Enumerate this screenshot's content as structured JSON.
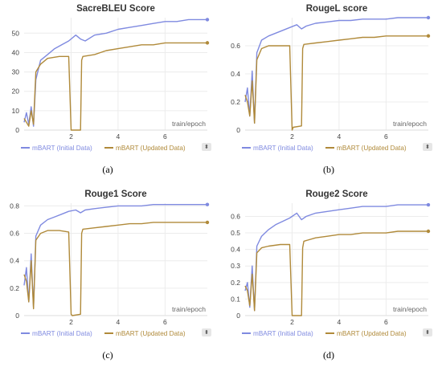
{
  "legend_controls": {
    "sort_icon": "sort-arrows-icon",
    "sort_glyph": "⬍"
  },
  "colors": {
    "initial": "#7f8ae0",
    "updated": "#b08a3a",
    "grid": "#ececec",
    "axis": "#dddddd"
  },
  "chart_data": [
    {
      "type": "line",
      "title": "SacreBLEU Score",
      "caption": "(a)",
      "xlabel": "train/epoch",
      "ylabel": "",
      "xlim": [
        0,
        7.8
      ],
      "ylim": [
        0,
        58
      ],
      "xticks": [
        "2",
        "4",
        "6"
      ],
      "yticks": [
        "0",
        "10",
        "20",
        "30",
        "40",
        "50"
      ],
      "series": [
        {
          "name": "mBART (Initial Data)",
          "color": "#7f8ae0",
          "x": [
            0.0,
            0.1,
            0.2,
            0.3,
            0.4,
            0.5,
            0.7,
            1.0,
            1.3,
            1.6,
            1.9,
            2.2,
            2.4,
            2.6,
            3.0,
            3.5,
            4.0,
            4.5,
            5.0,
            5.5,
            6.0,
            6.5,
            7.0,
            7.5,
            7.8
          ],
          "y": [
            4,
            9,
            3,
            12,
            2,
            26,
            36,
            39,
            42,
            44,
            46,
            49,
            47,
            46,
            49,
            50,
            52,
            53,
            54,
            55,
            56,
            56,
            57,
            57,
            57
          ]
        },
        {
          "name": "mBART (Updated Data)",
          "color": "#b08a3a",
          "x": [
            0.0,
            0.1,
            0.2,
            0.3,
            0.4,
            0.5,
            0.7,
            1.0,
            1.5,
            1.9,
            2.0,
            2.05,
            2.4,
            2.45,
            2.5,
            3.0,
            3.5,
            4.0,
            4.5,
            5.0,
            5.5,
            6.0,
            6.5,
            7.0,
            7.5,
            7.8
          ],
          "y": [
            6,
            4,
            2,
            10,
            3,
            30,
            34,
            37,
            38,
            38,
            0,
            0,
            0,
            36,
            38,
            39,
            41,
            42,
            43,
            44,
            44,
            45,
            45,
            45,
            45,
            45
          ]
        }
      ]
    },
    {
      "type": "line",
      "title": "RougeL score",
      "caption": "(b)",
      "xlabel": "train/epoch",
      "ylabel": "",
      "xlim": [
        0,
        7.8
      ],
      "ylim": [
        0,
        0.8
      ],
      "xticks": [
        "2",
        "4",
        "6"
      ],
      "yticks": [
        "0",
        "0.2",
        "0.4",
        "0.6"
      ],
      "series": [
        {
          "name": "mBART (Initial Data)",
          "color": "#7f8ae0",
          "x": [
            0.0,
            0.1,
            0.2,
            0.3,
            0.4,
            0.5,
            0.7,
            1.0,
            1.3,
            1.6,
            1.9,
            2.2,
            2.4,
            2.6,
            3.0,
            3.5,
            4.0,
            4.5,
            5.0,
            5.5,
            6.0,
            6.5,
            7.0,
            7.5,
            7.8
          ],
          "y": [
            0.2,
            0.3,
            0.1,
            0.42,
            0.05,
            0.55,
            0.64,
            0.67,
            0.69,
            0.71,
            0.73,
            0.75,
            0.72,
            0.74,
            0.76,
            0.77,
            0.78,
            0.78,
            0.79,
            0.79,
            0.79,
            0.8,
            0.8,
            0.8,
            0.8
          ]
        },
        {
          "name": "mBART (Updated Data)",
          "color": "#b08a3a",
          "x": [
            0.0,
            0.1,
            0.2,
            0.3,
            0.4,
            0.5,
            0.7,
            1.0,
            1.5,
            1.9,
            2.0,
            2.05,
            2.4,
            2.45,
            2.5,
            3.0,
            3.5,
            4.0,
            4.5,
            5.0,
            5.5,
            6.0,
            6.5,
            7.0,
            7.5,
            7.8
          ],
          "y": [
            0.25,
            0.2,
            0.1,
            0.35,
            0.05,
            0.5,
            0.58,
            0.6,
            0.6,
            0.6,
            0.0,
            0.02,
            0.03,
            0.58,
            0.61,
            0.62,
            0.63,
            0.64,
            0.65,
            0.66,
            0.66,
            0.67,
            0.67,
            0.67,
            0.67,
            0.67
          ]
        }
      ]
    },
    {
      "type": "line",
      "title": "Rouge1 Score",
      "caption": "(c)",
      "xlabel": "train/epoch",
      "ylabel": "",
      "xlim": [
        0,
        7.8
      ],
      "ylim": [
        0,
        0.82
      ],
      "xticks": [
        "2",
        "4",
        "6"
      ],
      "yticks": [
        "0",
        "0.2",
        "0.4",
        "0.6",
        "0.8"
      ],
      "series": [
        {
          "name": "mBART (Initial Data)",
          "color": "#7f8ae0",
          "x": [
            0.0,
            0.1,
            0.2,
            0.3,
            0.4,
            0.5,
            0.7,
            1.0,
            1.3,
            1.6,
            1.9,
            2.2,
            2.4,
            2.6,
            3.0,
            3.5,
            4.0,
            4.5,
            5.0,
            5.5,
            6.0,
            6.5,
            7.0,
            7.5,
            7.8
          ],
          "y": [
            0.22,
            0.35,
            0.1,
            0.45,
            0.06,
            0.58,
            0.66,
            0.7,
            0.72,
            0.74,
            0.76,
            0.77,
            0.75,
            0.77,
            0.78,
            0.79,
            0.8,
            0.8,
            0.8,
            0.81,
            0.81,
            0.81,
            0.81,
            0.81,
            0.81
          ]
        },
        {
          "name": "mBART (Updated Data)",
          "color": "#b08a3a",
          "x": [
            0.0,
            0.1,
            0.2,
            0.3,
            0.4,
            0.5,
            0.7,
            1.0,
            1.5,
            1.9,
            2.0,
            2.05,
            2.4,
            2.45,
            2.5,
            3.0,
            3.5,
            4.0,
            4.5,
            5.0,
            5.5,
            6.0,
            6.5,
            7.0,
            7.5,
            7.8
          ],
          "y": [
            0.3,
            0.25,
            0.1,
            0.4,
            0.05,
            0.55,
            0.6,
            0.62,
            0.62,
            0.61,
            0.01,
            0.0,
            0.01,
            0.6,
            0.63,
            0.64,
            0.65,
            0.66,
            0.67,
            0.67,
            0.68,
            0.68,
            0.68,
            0.68,
            0.68,
            0.68
          ]
        }
      ]
    },
    {
      "type": "line",
      "title": "Rouge2 Score",
      "caption": "(d)",
      "xlabel": "train/epoch",
      "ylabel": "",
      "xlim": [
        0,
        7.8
      ],
      "ylim": [
        0,
        0.68
      ],
      "xticks": [
        "2",
        "4",
        "6"
      ],
      "yticks": [
        "0",
        "0.1",
        "0.2",
        "0.3",
        "0.4",
        "0.5",
        "0.6"
      ],
      "series": [
        {
          "name": "mBART (Initial Data)",
          "color": "#7f8ae0",
          "x": [
            0.0,
            0.1,
            0.2,
            0.3,
            0.4,
            0.5,
            0.7,
            1.0,
            1.3,
            1.6,
            1.9,
            2.2,
            2.4,
            2.6,
            3.0,
            3.5,
            4.0,
            4.5,
            5.0,
            5.5,
            6.0,
            6.5,
            7.0,
            7.5,
            7.8
          ],
          "y": [
            0.15,
            0.2,
            0.05,
            0.3,
            0.03,
            0.42,
            0.48,
            0.52,
            0.55,
            0.57,
            0.59,
            0.62,
            0.58,
            0.6,
            0.62,
            0.63,
            0.64,
            0.65,
            0.66,
            0.66,
            0.66,
            0.67,
            0.67,
            0.67,
            0.67
          ]
        },
        {
          "name": "mBART (Updated Data)",
          "color": "#b08a3a",
          "x": [
            0.0,
            0.1,
            0.2,
            0.3,
            0.4,
            0.5,
            0.7,
            1.0,
            1.5,
            1.9,
            2.0,
            2.05,
            2.4,
            2.45,
            2.5,
            3.0,
            3.5,
            4.0,
            4.5,
            5.0,
            5.5,
            6.0,
            6.5,
            7.0,
            7.5,
            7.8
          ],
          "y": [
            0.18,
            0.15,
            0.06,
            0.25,
            0.03,
            0.38,
            0.41,
            0.42,
            0.43,
            0.43,
            0.0,
            0.0,
            0.0,
            0.41,
            0.45,
            0.47,
            0.48,
            0.49,
            0.49,
            0.5,
            0.5,
            0.5,
            0.51,
            0.51,
            0.51,
            0.51
          ]
        }
      ]
    }
  ]
}
